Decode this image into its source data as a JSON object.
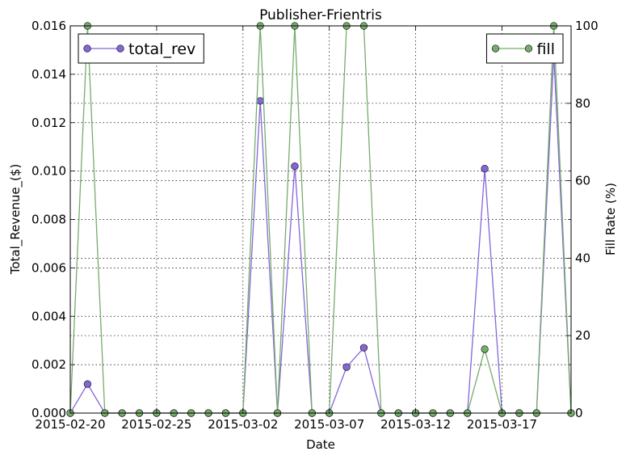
{
  "chart_data": {
    "type": "line",
    "title": "Publisher-Frientris",
    "xlabel": "Date",
    "ylabel": "Total_Revenue_($)",
    "y2label": "Fill Rate (%)",
    "x": [
      "2015-02-20",
      "2015-02-21",
      "2015-02-22",
      "2015-02-23",
      "2015-02-24",
      "2015-02-25",
      "2015-02-26",
      "2015-02-27",
      "2015-02-28",
      "2015-03-01",
      "2015-03-02",
      "2015-03-03",
      "2015-03-04",
      "2015-03-05",
      "2015-03-06",
      "2015-03-07",
      "2015-03-08",
      "2015-03-09",
      "2015-03-10",
      "2015-03-11",
      "2015-03-12",
      "2015-03-13",
      "2015-03-14",
      "2015-03-15",
      "2015-03-16",
      "2015-03-17",
      "2015-03-18",
      "2015-03-19",
      "2015-03-20",
      "2015-03-21"
    ],
    "x_ticks": [
      "2015-02-20",
      "2015-02-25",
      "2015-03-02",
      "2015-03-07",
      "2015-03-12",
      "2015-03-17"
    ],
    "ylim": [
      0,
      0.016
    ],
    "y_ticks": [
      "0.000",
      "0.002",
      "0.004",
      "0.006",
      "0.008",
      "0.010",
      "0.012",
      "0.014",
      "0.016"
    ],
    "y2lim": [
      0,
      100
    ],
    "y2_ticks": [
      "0",
      "20",
      "40",
      "60",
      "80",
      "100"
    ],
    "grid": true,
    "series": [
      {
        "name": "total_rev",
        "axis": "left",
        "color": "#8566d8",
        "values": [
          0,
          0.0012,
          0,
          0,
          0,
          0,
          0,
          0,
          0,
          0,
          0,
          0.0129,
          0,
          0.0102,
          0,
          0,
          0.0019,
          0.0027,
          0,
          0,
          0,
          0,
          0,
          0,
          0.0101,
          0,
          0,
          0,
          0.0148,
          0
        ]
      },
      {
        "name": "fill",
        "axis": "right",
        "color": "#77ab6d",
        "values": [
          0,
          100,
          0,
          0,
          0,
          0,
          0,
          0,
          0,
          0,
          0,
          100,
          0,
          100,
          0,
          0,
          100,
          100,
          0,
          0,
          0,
          0,
          0,
          0,
          16.5,
          0,
          0,
          0,
          100,
          0
        ]
      }
    ],
    "legends": [
      {
        "series": "total_rev",
        "placement": "upper left"
      },
      {
        "series": "fill",
        "placement": "upper right"
      }
    ]
  }
}
